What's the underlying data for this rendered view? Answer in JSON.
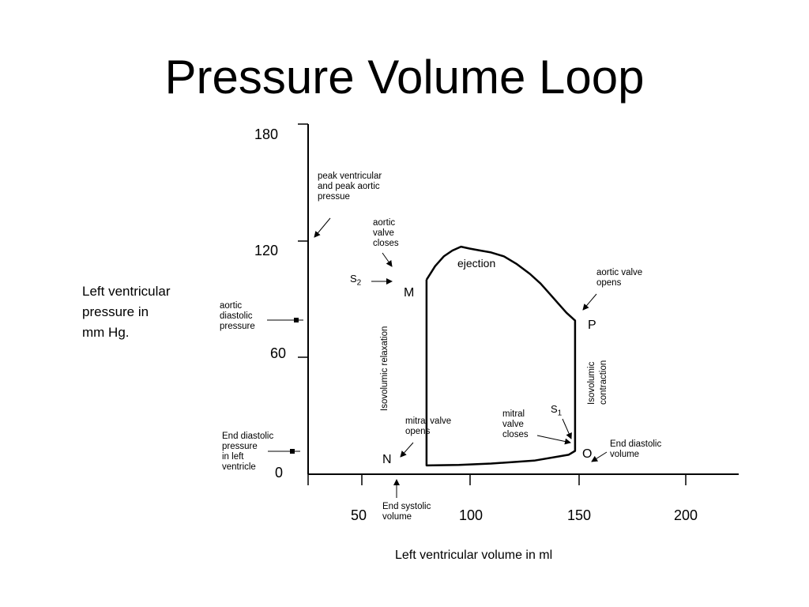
{
  "title": "Pressure Volume Loop",
  "y_axis": {
    "label_lines": [
      "Left ventricular",
      "pressure in",
      "mm Hg."
    ],
    "ticks": [
      "180",
      "120",
      "60",
      "0"
    ]
  },
  "x_axis": {
    "label": "Left ventricular volume in ml",
    "ticks": [
      "50",
      "100",
      "150",
      "200"
    ]
  },
  "points": {
    "M": "M",
    "N": "N",
    "O": "O",
    "P": "P"
  },
  "heart_sounds": {
    "s2": {
      "letter": "S",
      "sub": "2"
    },
    "s1": {
      "letter": "S",
      "sub": "1"
    }
  },
  "phases": {
    "ejection": "ejection",
    "isovolumic_relaxation": "Isovolumic relaxation",
    "isovolumic_contraction_lines": [
      "Isovolumic",
      "contraction"
    ]
  },
  "annotations": {
    "peak_pressure": [
      "peak ventricular",
      "and peak aortic",
      "pressue"
    ],
    "aortic_valve_closes": [
      "aortic",
      "valve",
      "closes"
    ],
    "aortic_valve_opens": [
      "aortic valve",
      "opens"
    ],
    "aortic_diastolic_pressure": [
      "aortic",
      "diastolic",
      "pressure"
    ],
    "mitral_valve_opens": [
      "mitral valve",
      "opens"
    ],
    "mitral_valve_closes": [
      "mitral",
      "valve",
      "closes"
    ],
    "end_diastolic_pressure": [
      "End diastolic",
      "pressure",
      "in left",
      "ventricle"
    ],
    "end_diastolic_volume": [
      "End diastolic",
      "volume"
    ],
    "end_systolic_volume": [
      "End systolic",
      "volume"
    ]
  },
  "loop_data": {
    "type": "line",
    "xlim": [
      25,
      225
    ],
    "ylim": [
      0,
      180
    ],
    "points": [
      {
        "x": 80,
        "y": 100
      },
      {
        "x": 84,
        "y": 107
      },
      {
        "x": 88,
        "y": 112
      },
      {
        "x": 92,
        "y": 115
      },
      {
        "x": 96,
        "y": 117
      },
      {
        "x": 100,
        "y": 116
      },
      {
        "x": 105,
        "y": 115
      },
      {
        "x": 110,
        "y": 114
      },
      {
        "x": 116,
        "y": 112
      },
      {
        "x": 122,
        "y": 108
      },
      {
        "x": 128,
        "y": 103
      },
      {
        "x": 133,
        "y": 98
      },
      {
        "x": 137,
        "y": 93
      },
      {
        "x": 141,
        "y": 88
      },
      {
        "x": 145,
        "y": 83
      },
      {
        "x": 149,
        "y": 79
      },
      {
        "x": 149,
        "y": 12
      },
      {
        "x": 146,
        "y": 10
      },
      {
        "x": 130,
        "y": 7
      },
      {
        "x": 110,
        "y": 5.5
      },
      {
        "x": 95,
        "y": 4.8
      },
      {
        "x": 80,
        "y": 4.5
      },
      {
        "x": 80,
        "y": 100
      }
    ]
  }
}
